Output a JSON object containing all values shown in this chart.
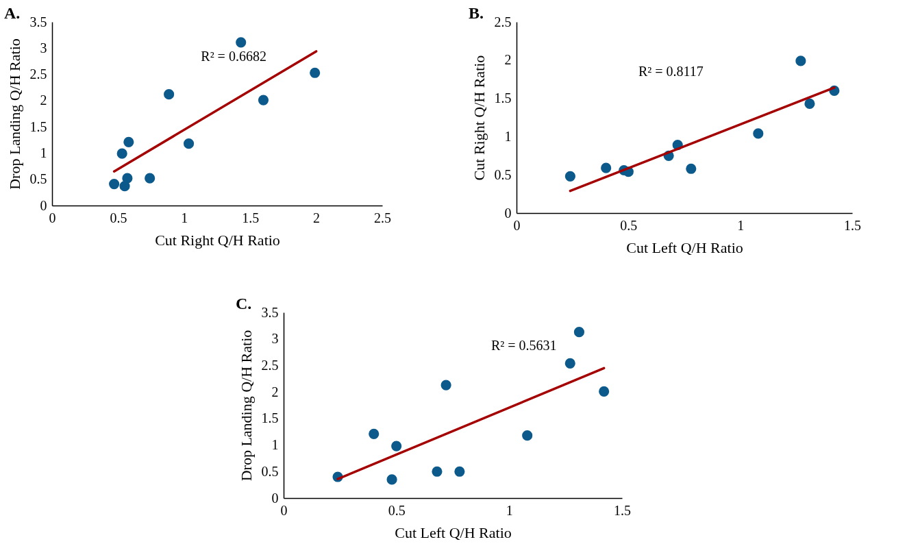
{
  "chart_data": [
    {
      "type": "scatter",
      "title": "A.",
      "xlabel": "Cut Right Q/H Ratio",
      "ylabel": "Drop Landing Q/H Ratio",
      "grid": false,
      "xlim": [
        0,
        2.5
      ],
      "xticks": [
        0,
        0.5,
        1,
        1.5,
        2,
        2.5
      ],
      "ylim": [
        0,
        3.5
      ],
      "yticks": [
        0,
        0.5,
        1,
        1.5,
        2,
        2.5,
        3,
        3.5
      ],
      "annotations": [
        "R² = 0.6682"
      ],
      "series": [
        {
          "type": "scatter",
          "marker": "circle",
          "color": "#0c5a8c",
          "x": [
            0.47,
            0.55,
            0.57,
            0.53,
            0.58,
            0.74,
            0.885,
            1.035,
            1.43,
            1.6,
            1.99
          ],
          "values": [
            0.41,
            0.37,
            0.52,
            0.99,
            1.21,
            0.52,
            2.12,
            1.18,
            3.11,
            2.01,
            2.53
          ]
        },
        {
          "type": "line",
          "color": "#a50000",
          "x": [
            0.47,
            2.0
          ],
          "values": [
            0.65,
            2.94
          ]
        }
      ]
    },
    {
      "type": "scatter",
      "title": "B.",
      "xlabel": "Cut Left Q/H Ratio",
      "ylabel": "Cut Right Q/H Ratio",
      "grid": false,
      "xlim": [
        0,
        1.5
      ],
      "xticks": [
        0,
        0.5,
        1,
        1.5
      ],
      "ylim": [
        0,
        2.5
      ],
      "yticks": [
        0,
        0.5,
        1,
        1.5,
        2,
        2.5
      ],
      "annotations": [
        "R² = 0.8117"
      ],
      "series": [
        {
          "type": "scatter",
          "marker": "circle",
          "color": "#0c5a8c",
          "x": [
            0.24,
            0.4,
            0.48,
            0.5,
            0.68,
            0.72,
            0.78,
            1.08,
            1.27,
            1.31,
            1.42
          ],
          "values": [
            0.48,
            0.59,
            0.56,
            0.54,
            0.75,
            0.89,
            0.58,
            1.04,
            1.99,
            1.43,
            1.6
          ]
        },
        {
          "type": "line",
          "color": "#a50000",
          "x": [
            0.24,
            1.42
          ],
          "values": [
            0.29,
            1.64
          ]
        }
      ]
    },
    {
      "type": "scatter",
      "title": "C.",
      "xlabel": "Cut Left Q/H Ratio",
      "ylabel": "Drop Landing Q/H Ratio",
      "grid": false,
      "xlim": [
        0,
        1.5
      ],
      "xticks": [
        0,
        0.5,
        1,
        1.5
      ],
      "ylim": [
        0,
        3.5
      ],
      "yticks": [
        0,
        0.5,
        1,
        1.5,
        2,
        2.5,
        3,
        3.5
      ],
      "annotations": [
        "R² = 0.5631"
      ],
      "series": [
        {
          "type": "scatter",
          "marker": "circle",
          "color": "#0c5a8c",
          "x": [
            0.24,
            0.4,
            0.5,
            0.48,
            0.68,
            0.78,
            0.72,
            1.08,
            1.27,
            1.31,
            1.42
          ],
          "values": [
            0.4,
            1.21,
            0.98,
            0.35,
            0.5,
            0.5,
            2.13,
            1.18,
            2.54,
            3.13,
            2.01
          ]
        },
        {
          "type": "line",
          "color": "#a50000",
          "x": [
            0.24,
            1.42
          ],
          "values": [
            0.36,
            2.45
          ]
        }
      ]
    }
  ]
}
